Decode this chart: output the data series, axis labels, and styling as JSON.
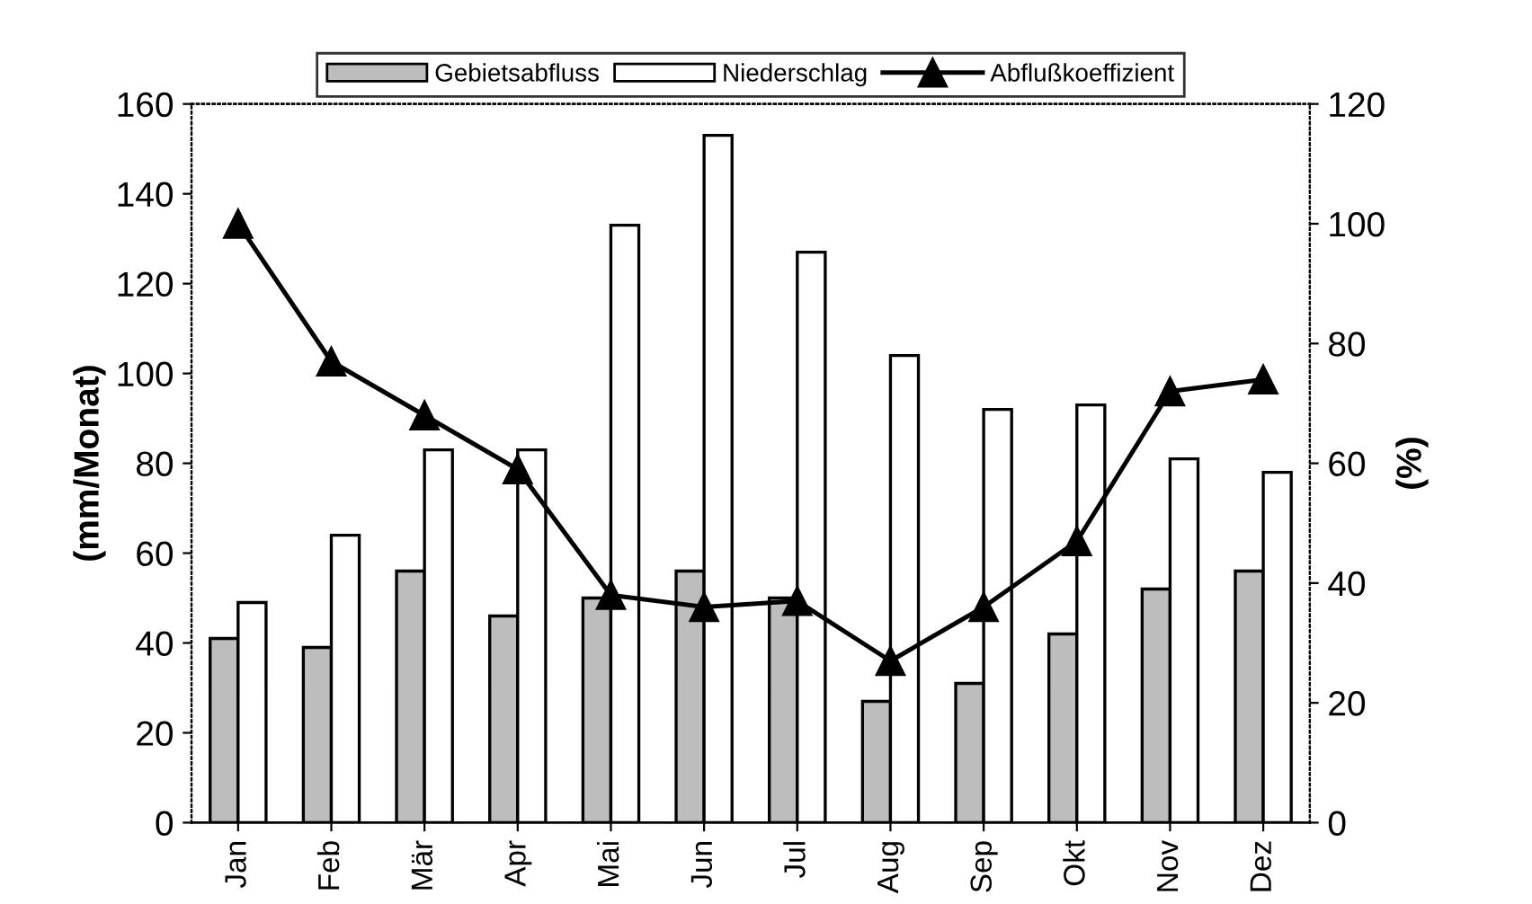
{
  "chart_data": {
    "type": "bar",
    "ylabel": "(mm/Monat)",
    "y2label": "(%)",
    "categories": [
      "Jan",
      "Feb",
      "Mär",
      "Apr",
      "Mai",
      "Jun",
      "Jul",
      "Aug",
      "Sep",
      "Okt",
      "Nov",
      "Dez"
    ],
    "series": [
      {
        "name": "Gebietsabfluss",
        "color": "#bdbdbd",
        "values": [
          41,
          39,
          56,
          46,
          50,
          56,
          50,
          27,
          31,
          42,
          52,
          56
        ]
      },
      {
        "name": "Niederschlag",
        "color": "#ffffff",
        "values": [
          49,
          64,
          83,
          83,
          133,
          153,
          127,
          104,
          92,
          93,
          81,
          78
        ]
      },
      {
        "name": "Abflußkoeffizient",
        "type": "line",
        "axis": "y2",
        "color": "#000000",
        "marker": "triangle",
        "values": [
          100,
          77,
          68,
          59,
          38,
          36,
          37,
          27,
          36,
          47,
          72,
          74
        ]
      }
    ],
    "ylim": [
      0,
      160
    ],
    "yticks": [
      0,
      20,
      40,
      60,
      80,
      100,
      120,
      140,
      160
    ],
    "y2lim": [
      0,
      120
    ],
    "y2ticks": [
      0,
      20,
      40,
      60,
      80,
      100,
      120
    ],
    "legend": "top",
    "grid": false
  }
}
